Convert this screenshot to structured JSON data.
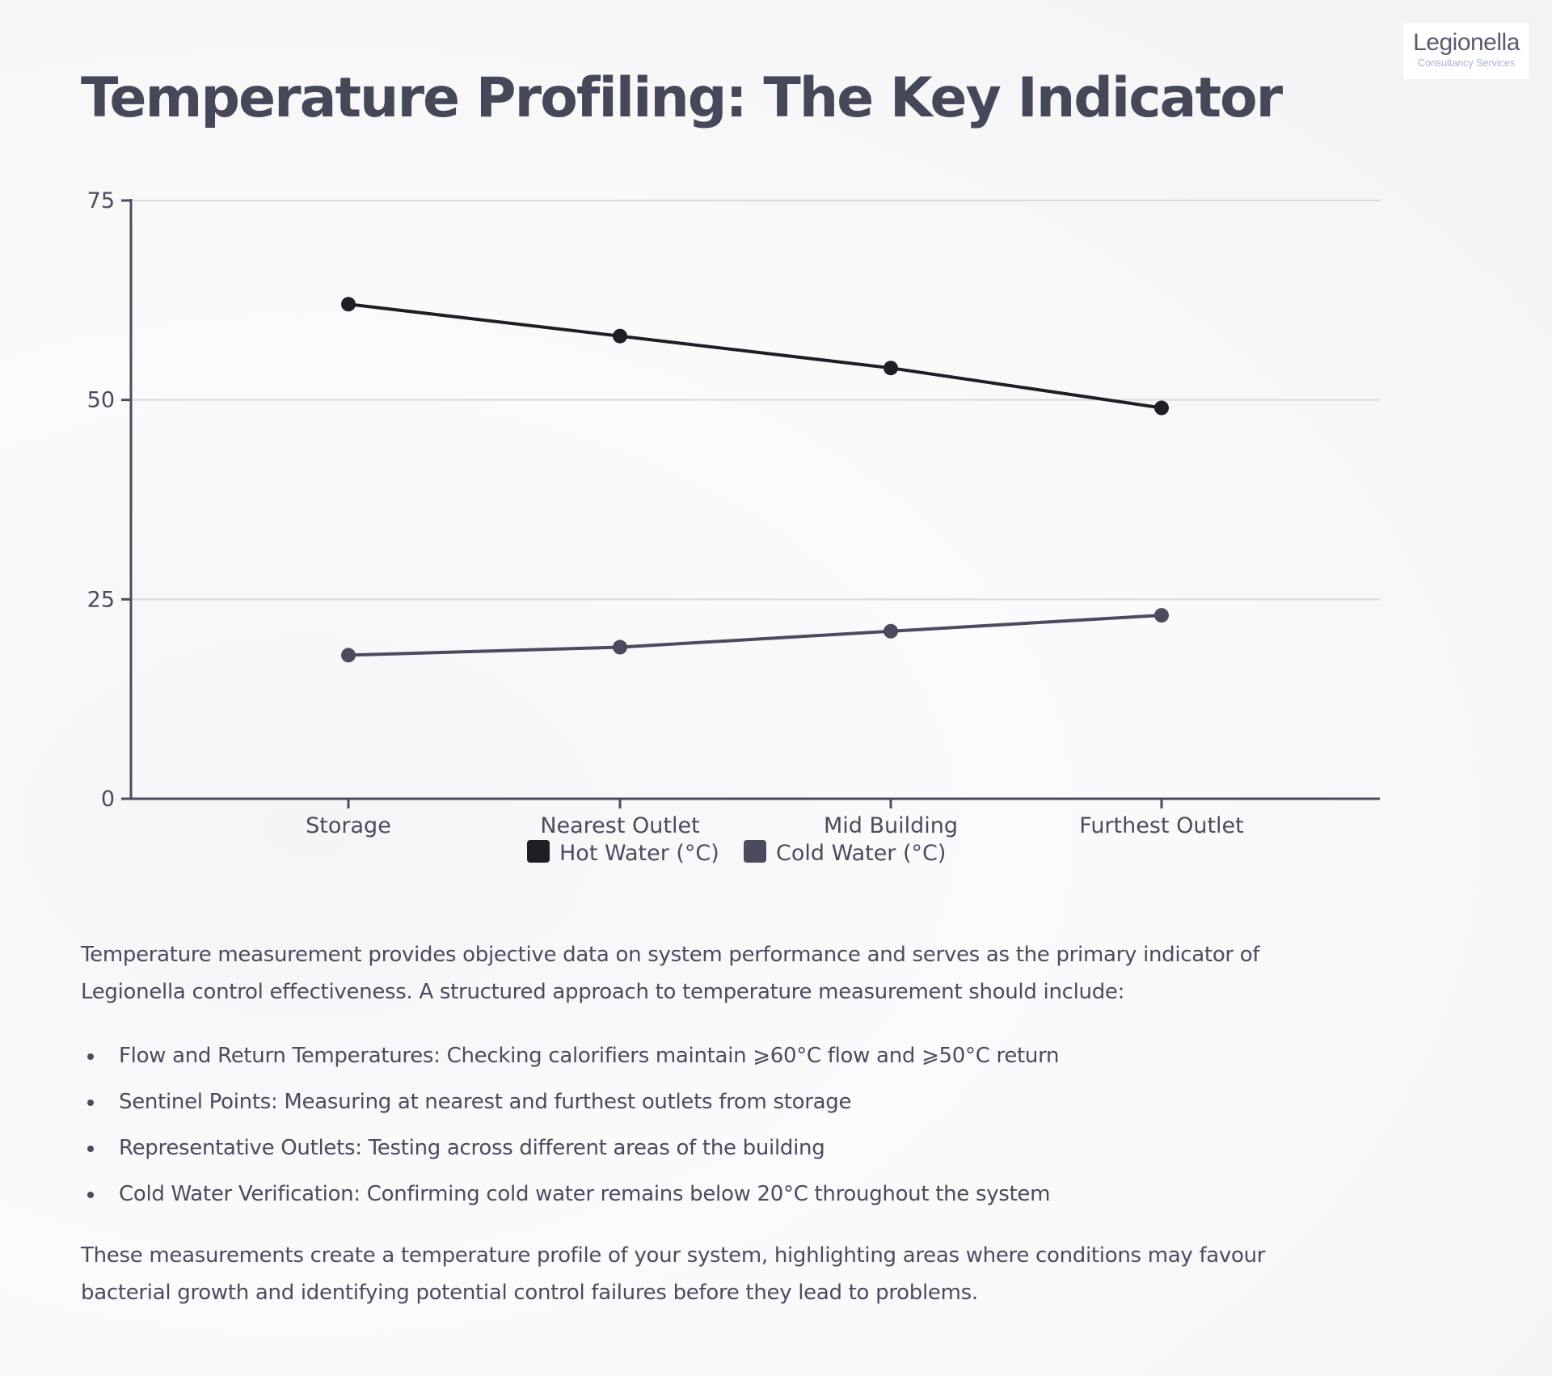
{
  "logo": {
    "main": "Legionella",
    "sub": "Consultancy Services"
  },
  "title": "Temperature Profiling: The Key Indicator",
  "chart_data": {
    "type": "line",
    "categories": [
      "Storage",
      "Nearest Outlet",
      "Mid Building",
      "Furthest Outlet"
    ],
    "series": [
      {
        "name": "Hot Water (°C)",
        "values": [
          62,
          58,
          54,
          49
        ],
        "color": "#1e1f26"
      },
      {
        "name": "Cold Water (°C)",
        "values": [
          18,
          19,
          21,
          23
        ],
        "color": "#4a4c5e"
      }
    ],
    "yticks": [
      0,
      25,
      50,
      75
    ],
    "ylim": [
      0,
      75
    ],
    "grid": true,
    "legend": "bottom-center",
    "title": "",
    "xlabel": "",
    "ylabel": ""
  },
  "intro": "Temperature measurement provides objective data on system performance and serves as the primary indicator of Legionella control effectiveness. A structured approach to temperature measurement should include:",
  "bullets": [
    "Flow and Return Temperatures: Checking calorifiers maintain ⩾60°C flow and ⩾50°C return",
    "Sentinel Points: Measuring at nearest and furthest outlets from storage",
    "Representative Outlets: Testing across different areas of the building",
    "Cold Water Verification: Confirming cold water remains below 20°C throughout the system"
  ],
  "outro": "These measurements create a temperature profile of your system, highlighting areas where conditions may favour bacterial growth and identifying potential control failures before they lead to problems."
}
